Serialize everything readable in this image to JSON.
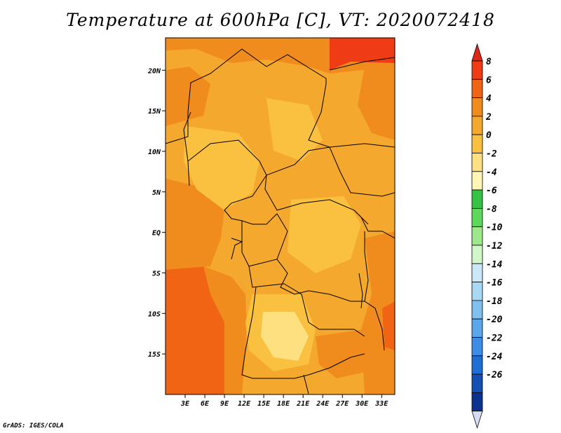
{
  "title": "Temperature at 600hPa [C], VT: 2020072418",
  "credit": "GrADS: IGES/COLA",
  "map": {
    "lon_range": [
      0,
      35
    ],
    "lat_range": [
      -20,
      24
    ],
    "lat_ticks": [
      {
        "value": 20,
        "label": "20N"
      },
      {
        "value": 15,
        "label": "15N"
      },
      {
        "value": 10,
        "label": "10N"
      },
      {
        "value": 5,
        "label": "5N"
      },
      {
        "value": 0,
        "label": "EQ"
      },
      {
        "value": -5,
        "label": "5S"
      },
      {
        "value": -10,
        "label": "10S"
      },
      {
        "value": -15,
        "label": "15S"
      }
    ],
    "lon_ticks": [
      {
        "value": 3,
        "label": "3E"
      },
      {
        "value": 6,
        "label": "6E"
      },
      {
        "value": 9,
        "label": "9E"
      },
      {
        "value": 12,
        "label": "12E"
      },
      {
        "value": 15,
        "label": "15E"
      },
      {
        "value": 18,
        "label": "18E"
      },
      {
        "value": 21,
        "label": "21E"
      },
      {
        "value": 24,
        "label": "24E"
      },
      {
        "value": 27,
        "label": "27E"
      },
      {
        "value": 30,
        "label": "30E"
      },
      {
        "value": 33,
        "label": "33E"
      }
    ]
  },
  "colorbar": {
    "labels": [
      "8",
      "6",
      "4",
      "2",
      "0",
      "-2",
      "-4",
      "-6",
      "-8",
      "-10",
      "-12",
      "-14",
      "-16",
      "-18",
      "-20",
      "-22",
      "-24",
      "-26"
    ],
    "colors": [
      "#f03c14",
      "#f06414",
      "#f08c1e",
      "#f5a82e",
      "#fac040",
      "#fde080",
      "#fff5b4",
      "#36c242",
      "#5ed85a",
      "#9de88a",
      "#d2f5c8",
      "#cbe8f8",
      "#a9d8f5",
      "#80c0f0",
      "#5aa6ec",
      "#3c8ce8",
      "#1e6ed8",
      "#1450b4",
      "#0c3290"
    ],
    "top_color": "#e12814",
    "bottom_color": "#d7dcf5"
  }
}
